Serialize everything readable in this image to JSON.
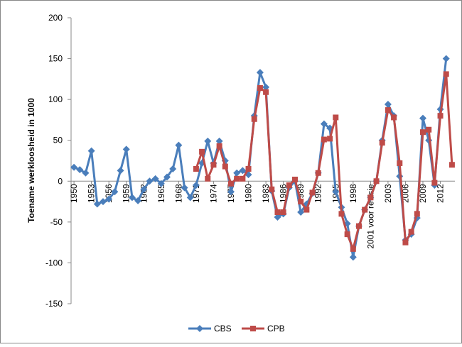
{
  "chart_data": {
    "type": "line",
    "y_label": "Toename werkloosheid in 1000",
    "categories": [
      "1950",
      null,
      null,
      "1953",
      null,
      null,
      "1956",
      null,
      null,
      "1959",
      null,
      null,
      "1962",
      null,
      null,
      "1965",
      null,
      null,
      "1968",
      null,
      null,
      "1971",
      null,
      null,
      "1974",
      null,
      null,
      "1977",
      null,
      null,
      "1980",
      null,
      null,
      "1983",
      null,
      null,
      "1986",
      null,
      null,
      "1989",
      null,
      null,
      "1992",
      null,
      null,
      "1995",
      null,
      null,
      "1998",
      null,
      null,
      "2001 voor revisie",
      null,
      null,
      "2003",
      null,
      null,
      "2006",
      null,
      null,
      "2009",
      null,
      null,
      "2012",
      null,
      null
    ],
    "series": [
      {
        "name": "CBS",
        "color": "#4a7ebb",
        "marker": "diamond",
        "values": [
          17,
          14,
          10,
          37,
          -28,
          -25,
          -22,
          -13,
          13,
          39,
          -20,
          -24,
          -10,
          0,
          3,
          -3,
          5,
          15,
          44,
          -8,
          -20,
          -5,
          22,
          49,
          22,
          49,
          25,
          -13,
          10,
          13,
          8,
          80,
          133,
          115,
          -12,
          -44,
          -40,
          -8,
          0,
          -38,
          -28,
          -15,
          10,
          70,
          65,
          -13,
          -32,
          -52,
          -93,
          -55,
          -35,
          -20,
          0,
          50,
          94,
          80,
          6,
          -72,
          -65,
          -45,
          77,
          50,
          -5,
          88,
          150,
          null
        ]
      },
      {
        "name": "CPB",
        "color": "#be4b48",
        "marker": "square",
        "values": [
          null,
          null,
          null,
          null,
          null,
          null,
          null,
          null,
          null,
          null,
          null,
          null,
          null,
          null,
          null,
          null,
          null,
          null,
          null,
          null,
          null,
          15,
          36,
          3,
          20,
          43,
          18,
          -3,
          3,
          3,
          15,
          76,
          114,
          109,
          -10,
          -38,
          -38,
          -5,
          2,
          -25,
          -35,
          -14,
          10,
          51,
          52,
          78,
          -40,
          -65,
          -83,
          -55,
          -35,
          -20,
          0,
          47,
          87,
          78,
          22,
          -75,
          -62,
          -40,
          60,
          63,
          -2,
          80,
          131,
          20
        ]
      }
    ],
    "ylim": [
      -150,
      200
    ],
    "yticks": [
      -150,
      -100,
      -50,
      0,
      50,
      100,
      150,
      200
    ],
    "grid": false,
    "legend": "bottom"
  }
}
